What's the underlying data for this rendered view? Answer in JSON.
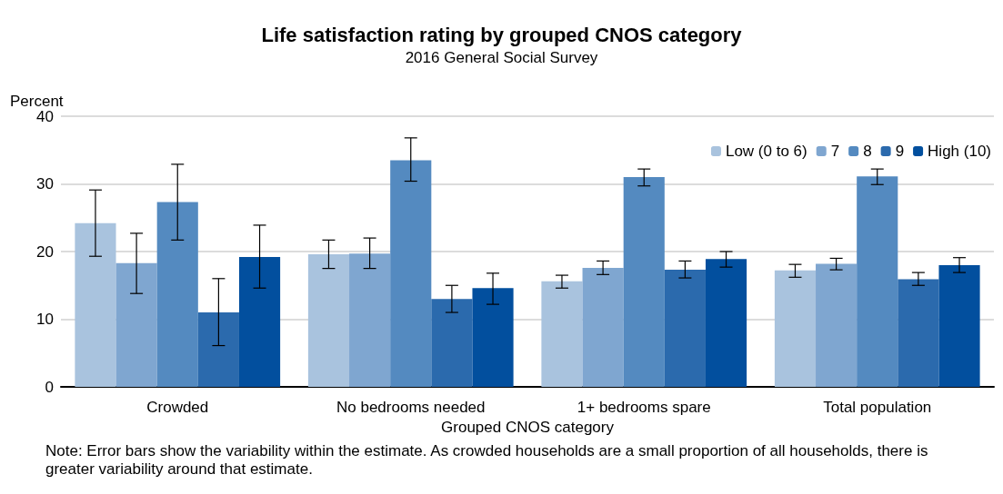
{
  "chart_data": {
    "type": "bar",
    "title": "Life satisfaction rating by grouped CNOS category",
    "subtitle": "2016 General Social Survey",
    "xlabel": "Grouped CNOS category",
    "ylabel": "Percent",
    "categories": [
      "Crowded",
      "No bedrooms needed",
      "1+ bedrooms spare",
      "Total population"
    ],
    "series": [
      {
        "name": "Low (0 to 6)",
        "color": "#a9c3de",
        "values": [
          24.2,
          19.6,
          15.6,
          17.2
        ],
        "errors": [
          [
            19.3,
            29.1
          ],
          [
            17.5,
            21.7
          ],
          [
            14.6,
            16.5
          ],
          [
            16.2,
            18.1
          ]
        ]
      },
      {
        "name": "7",
        "color": "#7fa6d0",
        "values": [
          18.3,
          19.7,
          17.6,
          18.2
        ],
        "errors": [
          [
            13.8,
            22.7
          ],
          [
            17.5,
            22.0
          ],
          [
            16.6,
            18.6
          ],
          [
            17.3,
            19.0
          ]
        ]
      },
      {
        "name": "8",
        "color": "#548ac0",
        "values": [
          27.3,
          33.5,
          31.0,
          31.1
        ],
        "errors": [
          [
            21.7,
            32.9
          ],
          [
            30.4,
            36.8
          ],
          [
            29.7,
            32.2
          ],
          [
            29.9,
            32.2
          ]
        ]
      },
      {
        "name": "9",
        "color": "#2b6aad",
        "values": [
          11.0,
          13.0,
          17.3,
          15.9
        ],
        "errors": [
          [
            6.1,
            16.0
          ],
          [
            11.0,
            15.0
          ],
          [
            16.1,
            18.6
          ],
          [
            15.0,
            16.9
          ]
        ]
      },
      {
        "name": "High (10)",
        "color": "#024f9e",
        "values": [
          19.2,
          14.6,
          18.9,
          18.0
        ],
        "errors": [
          [
            14.6,
            23.9
          ],
          [
            12.2,
            16.8
          ],
          [
            17.7,
            20.0
          ],
          [
            16.9,
            19.1
          ]
        ]
      }
    ],
    "ylim": [
      0,
      40
    ],
    "yticks": [
      0,
      10,
      20,
      30,
      40
    ],
    "grid": "y",
    "legend": "top right",
    "annotations": [
      "Note: Error bars show the variability within the estimate. As crowded households are a small proportion of all households, there is greater variability around that estimate."
    ]
  }
}
